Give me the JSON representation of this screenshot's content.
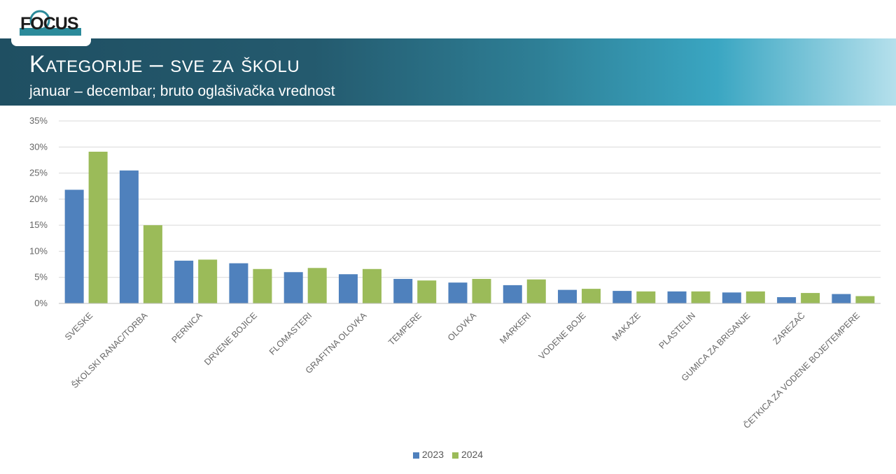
{
  "header": {
    "logo_text": "FOCUS",
    "title": "Kategorije – sve za školu",
    "subtitle": "januar – decembar; bruto oglašivačka vrednost"
  },
  "colors": {
    "series_2023": "#4f81bd",
    "series_2024": "#9bbb59",
    "grid": "#d9d9d9"
  },
  "chart_data": {
    "type": "bar",
    "title": "",
    "xlabel": "",
    "ylabel": "",
    "ylim": [
      0,
      35
    ],
    "yticks": [
      "0%",
      "5%",
      "10%",
      "15%",
      "20%",
      "25%",
      "30%",
      "35%"
    ],
    "grid": true,
    "legend_position": "bottom",
    "categories": [
      "SVESKE",
      "ŠKOLSKI RANAC/TORBA",
      "PERNICA",
      "DRVENE BOJICE",
      "FLOMASTERI",
      "GRAFITNA OLOVKA",
      "TEMPERE",
      "OLOVKA",
      "MARKERI",
      "VODENE BOJE",
      "MAKAZE",
      "PLASTELIN",
      "GUMICA ZA BRISANJE",
      "ZAREZAČ",
      "ČETKICA ZA VODENE BOJE/TEMPERE"
    ],
    "series": [
      {
        "name": "2023",
        "values": [
          21.8,
          25.5,
          8.2,
          7.7,
          6.0,
          5.6,
          4.7,
          4.0,
          3.5,
          2.6,
          2.4,
          2.3,
          2.1,
          1.2,
          1.8
        ]
      },
      {
        "name": "2024",
        "values": [
          29.1,
          15.0,
          8.4,
          6.6,
          6.8,
          6.6,
          4.4,
          4.7,
          4.6,
          2.8,
          2.3,
          2.3,
          2.3,
          2.0,
          1.4
        ]
      }
    ]
  }
}
